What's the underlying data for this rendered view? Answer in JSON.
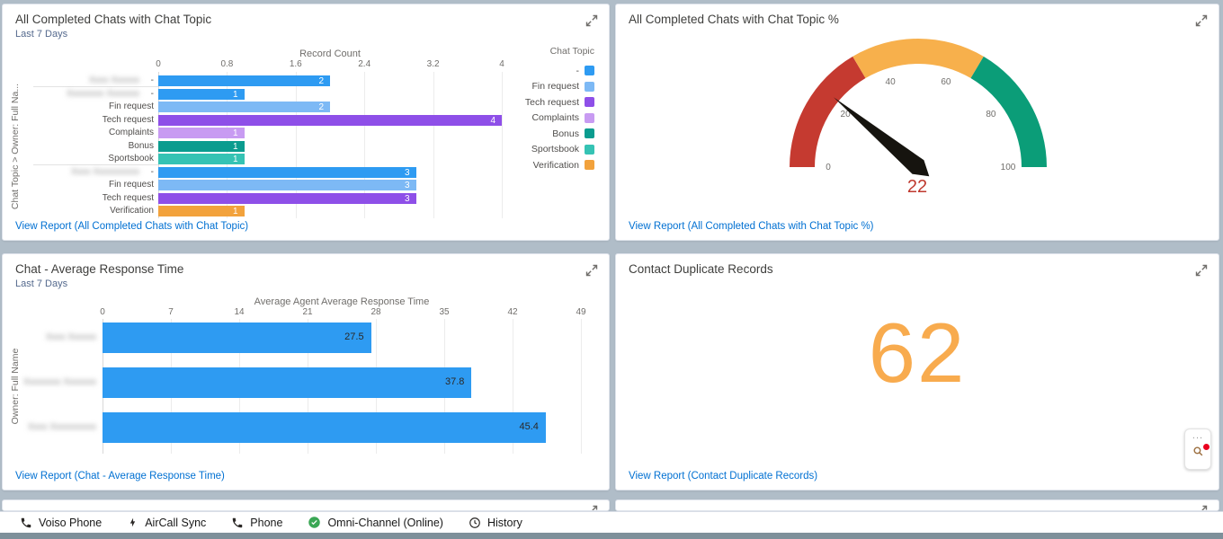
{
  "theme": {
    "background": "#b0bdc8",
    "panel": "#ffffff",
    "link_color": "#0070d2",
    "title_color": "#3e3e3c",
    "subtitle_color": "#54698d",
    "axis_color": "#706e6b"
  },
  "panels": {
    "topic_bar": {
      "title": "All Completed Chats with Chat Topic",
      "subtitle": "Last 7 Days",
      "view_report": "View Report (All Completed Chats with Chat Topic)"
    },
    "topic_gauge": {
      "title": "All Completed Chats with Chat Topic %",
      "view_report": "View Report (All Completed Chats with Chat Topic %)"
    },
    "response_bar": {
      "title": "Chat - Average Response Time",
      "subtitle": "Last 7 Days",
      "view_report": "View Report (Chat - Average Response Time)"
    },
    "duplicates": {
      "title": "Contact Duplicate Records",
      "view_report": "View Report (Contact Duplicate Records)"
    }
  },
  "chart_data": [
    {
      "id": "topic_bar",
      "type": "bar",
      "orientation": "horizontal",
      "axis_title": "Record Count",
      "value_axis": {
        "min": 0,
        "max": 4,
        "ticks": [
          0,
          0.8,
          1.6,
          2.4,
          3.2,
          4
        ]
      },
      "category_axis_label": "Chat Topic  >  Owner: Full Na...",
      "legend_title": "Chat Topic",
      "legend": [
        {
          "label": "-",
          "color": "#2e9bf2"
        },
        {
          "label": "Fin request",
          "color": "#7db9f5"
        },
        {
          "label": "Tech request",
          "color": "#8e4fe8"
        },
        {
          "label": "Complaints",
          "color": "#c89bf2"
        },
        {
          "label": "Bonus",
          "color": "#0a9c8f"
        },
        {
          "label": "Sportsbook",
          "color": "#35c3b4"
        },
        {
          "label": "Verification",
          "color": "#f2a23c"
        }
      ],
      "groups": [
        {
          "owner_blurred": "Xxxx Xxxxxx",
          "rows": [
            {
              "topic": "-",
              "value": 2
            }
          ]
        },
        {
          "owner_blurred": "Xxxxxxxx Xxxxxxx",
          "rows": [
            {
              "topic": "-",
              "value": 1
            },
            {
              "topic": "Fin request",
              "value": 2
            },
            {
              "topic": "Tech request",
              "value": 4
            },
            {
              "topic": "Complaints",
              "value": 1
            },
            {
              "topic": "Bonus",
              "value": 1
            },
            {
              "topic": "Sportsbook",
              "value": 1
            }
          ]
        },
        {
          "owner_blurred": "Xxxx Xxxxxxxxxx",
          "rows": [
            {
              "topic": "-",
              "value": 3
            },
            {
              "topic": "Fin request",
              "value": 3
            },
            {
              "topic": "Tech request",
              "value": 3
            },
            {
              "topic": "Verification",
              "value": 1
            }
          ]
        }
      ]
    },
    {
      "id": "topic_gauge",
      "type": "gauge",
      "value": 22,
      "value_color": "#bf392e",
      "range": [
        0,
        100
      ],
      "ticks": [
        0,
        20,
        40,
        60,
        80,
        100
      ],
      "segments": [
        {
          "from": 0,
          "to": 33,
          "color": "#c53a30"
        },
        {
          "from": 33,
          "to": 67,
          "color": "#f7b04c"
        },
        {
          "from": 67,
          "to": 100,
          "color": "#0b9d78"
        }
      ]
    },
    {
      "id": "response_bar",
      "type": "bar",
      "orientation": "horizontal",
      "axis_title": "Average Agent Average Response Time",
      "value_axis": {
        "min": 0,
        "max": 49,
        "ticks": [
          0,
          7,
          14,
          21,
          28,
          35,
          42,
          49
        ]
      },
      "category_axis_label": "Owner: Full Name",
      "bar_color": "#2e9bf2",
      "rows": [
        {
          "owner_blurred": "Xxxx Xxxxxx",
          "value": 27.5
        },
        {
          "owner_blurred": "Xxxxxxxx Xxxxxxx",
          "value": 37.8
        },
        {
          "owner_blurred": "Xxxx Xxxxxxxxxx",
          "value": 45.4
        }
      ]
    },
    {
      "id": "duplicates_metric",
      "type": "metric",
      "value": "62",
      "color": "#f8ab4e"
    }
  ],
  "utility_bar": {
    "items": [
      {
        "icon": "phone-icon",
        "label": "Voiso Phone"
      },
      {
        "icon": "lightning-icon",
        "label": "AirCall Sync"
      },
      {
        "icon": "phone-icon",
        "label": "Phone"
      },
      {
        "icon": "check-circle-icon",
        "label": "Omni-Channel (Online)"
      },
      {
        "icon": "clock-icon",
        "label": "History"
      }
    ]
  },
  "floating_widget": {
    "ellipsis": "..."
  }
}
